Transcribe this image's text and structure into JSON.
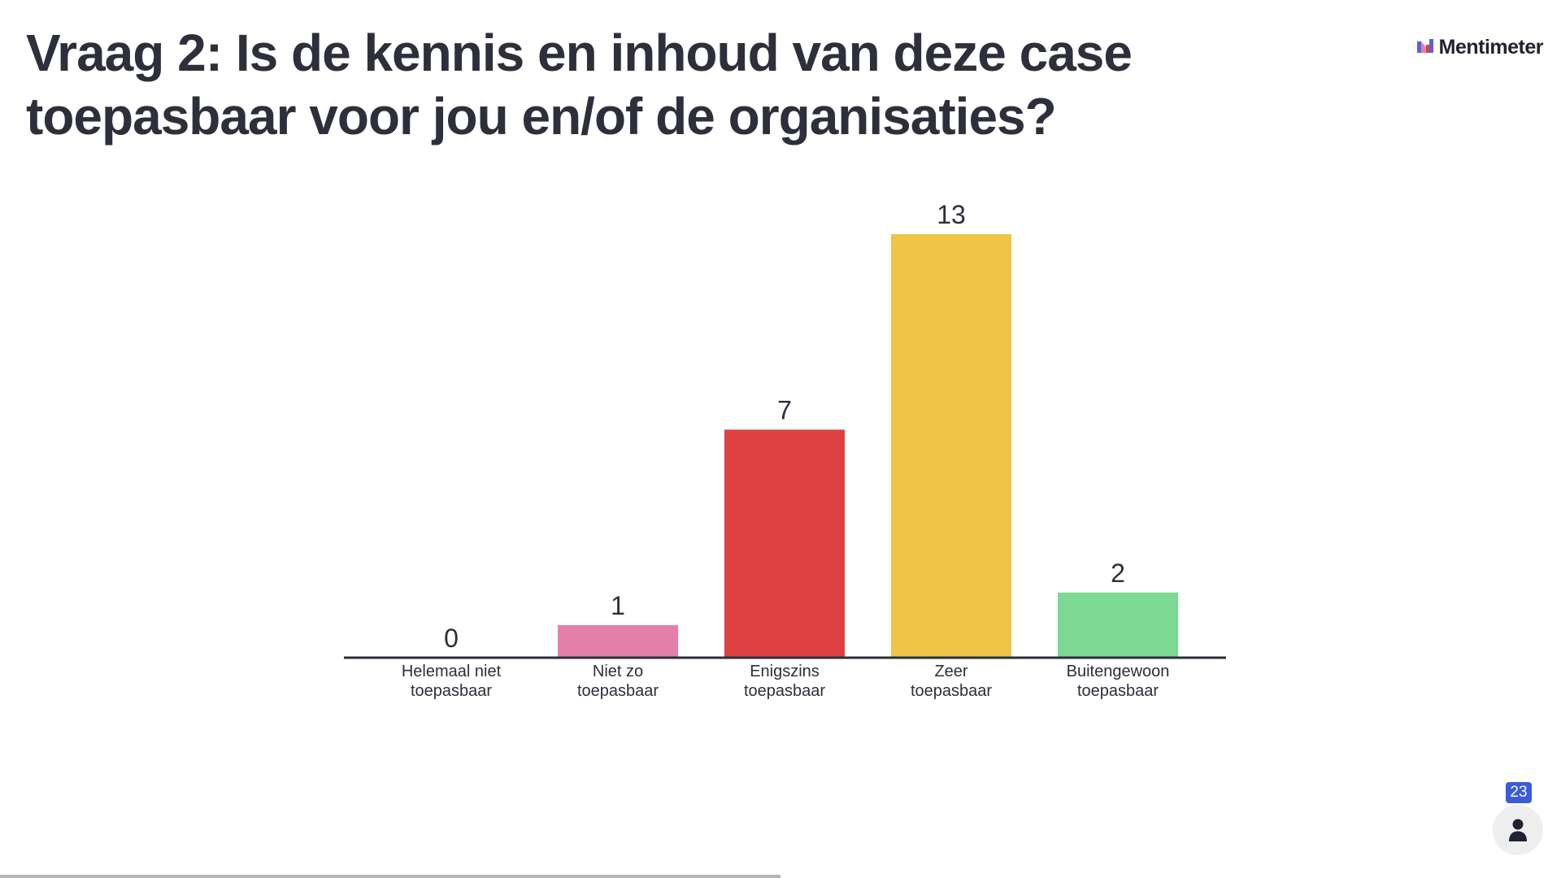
{
  "slide": {
    "title": "Vraag 2: Is de kennis en inhoud van deze case toepasbaar voor jou en/of de organisaties?"
  },
  "brand": {
    "name": "Mentimeter",
    "logo_icon": "mentimeter-logo-icon"
  },
  "participants": {
    "count": "23",
    "icon": "person-icon",
    "badge_color": "#3b5bdb"
  },
  "progress": {
    "fraction": 0.5
  },
  "chart_data": {
    "type": "bar",
    "categories": [
      [
        "Helemaal niet",
        "toepasbaar"
      ],
      [
        "Niet zo",
        "toepasbaar"
      ],
      [
        "Enigszins",
        "toepasbaar"
      ],
      [
        "Zeer",
        "toepasbaar"
      ],
      [
        "Buitengewoon",
        "toepasbaar"
      ]
    ],
    "values": [
      0,
      1,
      7,
      13,
      2
    ],
    "colors": [
      "#5a62d6",
      "#e47fa8",
      "#dd4140",
      "#f0c547",
      "#7cd993"
    ],
    "axis_color": "#2c2f3a",
    "title": "",
    "xlabel": "",
    "ylabel": "",
    "ylim": [
      0,
      13
    ],
    "grid": false,
    "legend": "none"
  }
}
